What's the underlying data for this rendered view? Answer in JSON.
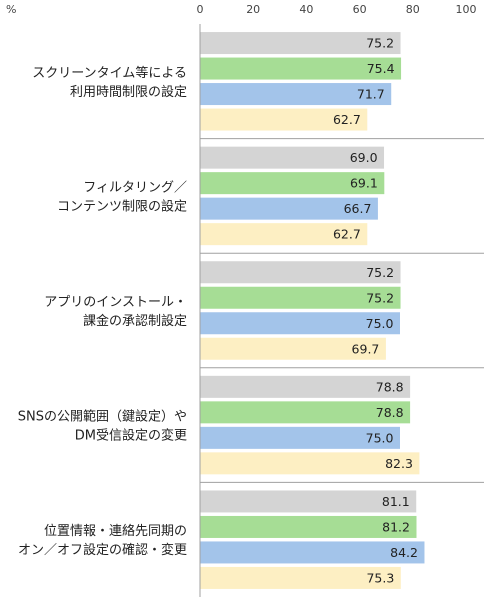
{
  "chart_data": {
    "type": "bar",
    "orientation": "horizontal",
    "unit": "%",
    "xlim": [
      0,
      100
    ],
    "ticks": [
      0,
      20,
      40,
      60,
      80,
      100
    ],
    "tick_labels": [
      "0",
      "20",
      "40",
      "60",
      "80",
      "100"
    ],
    "categories": [
      [
        "スクリーンタイム等による",
        "利用時間制限の設定"
      ],
      [
        "フィルタリング／",
        "コンテンツ制限の設定"
      ],
      [
        "アプリのインストール・",
        "課金の承認制設定"
      ],
      [
        "SNSの公開範囲（鍵設定）や",
        "DM受信設定の変更"
      ],
      [
        "位置情報・連絡先同期の",
        "オン／オフ設定の確認・変更"
      ]
    ],
    "series": [
      {
        "color": "#d4d4d4",
        "values": [
          75.2,
          69.0,
          75.2,
          78.8,
          81.1
        ],
        "labels": [
          "75.2",
          "69.0",
          "75.2",
          "78.8",
          "81.1"
        ]
      },
      {
        "color": "#a6dd95",
        "values": [
          75.4,
          69.1,
          75.2,
          78.8,
          81.2
        ],
        "labels": [
          "75.4",
          "69.1",
          "75.2",
          "78.8",
          "81.2"
        ]
      },
      {
        "color": "#a3c4ea",
        "values": [
          71.7,
          66.7,
          75.0,
          75.0,
          84.2
        ],
        "labels": [
          "71.7",
          "66.7",
          "75.0",
          "75.0",
          "84.2"
        ]
      },
      {
        "color": "#fdefc3",
        "values": [
          62.7,
          62.7,
          69.7,
          82.3,
          75.3
        ],
        "labels": [
          "62.7",
          "62.7",
          "69.7",
          "82.3",
          "75.3"
        ]
      }
    ],
    "gridlines": false,
    "legend": "none"
  }
}
